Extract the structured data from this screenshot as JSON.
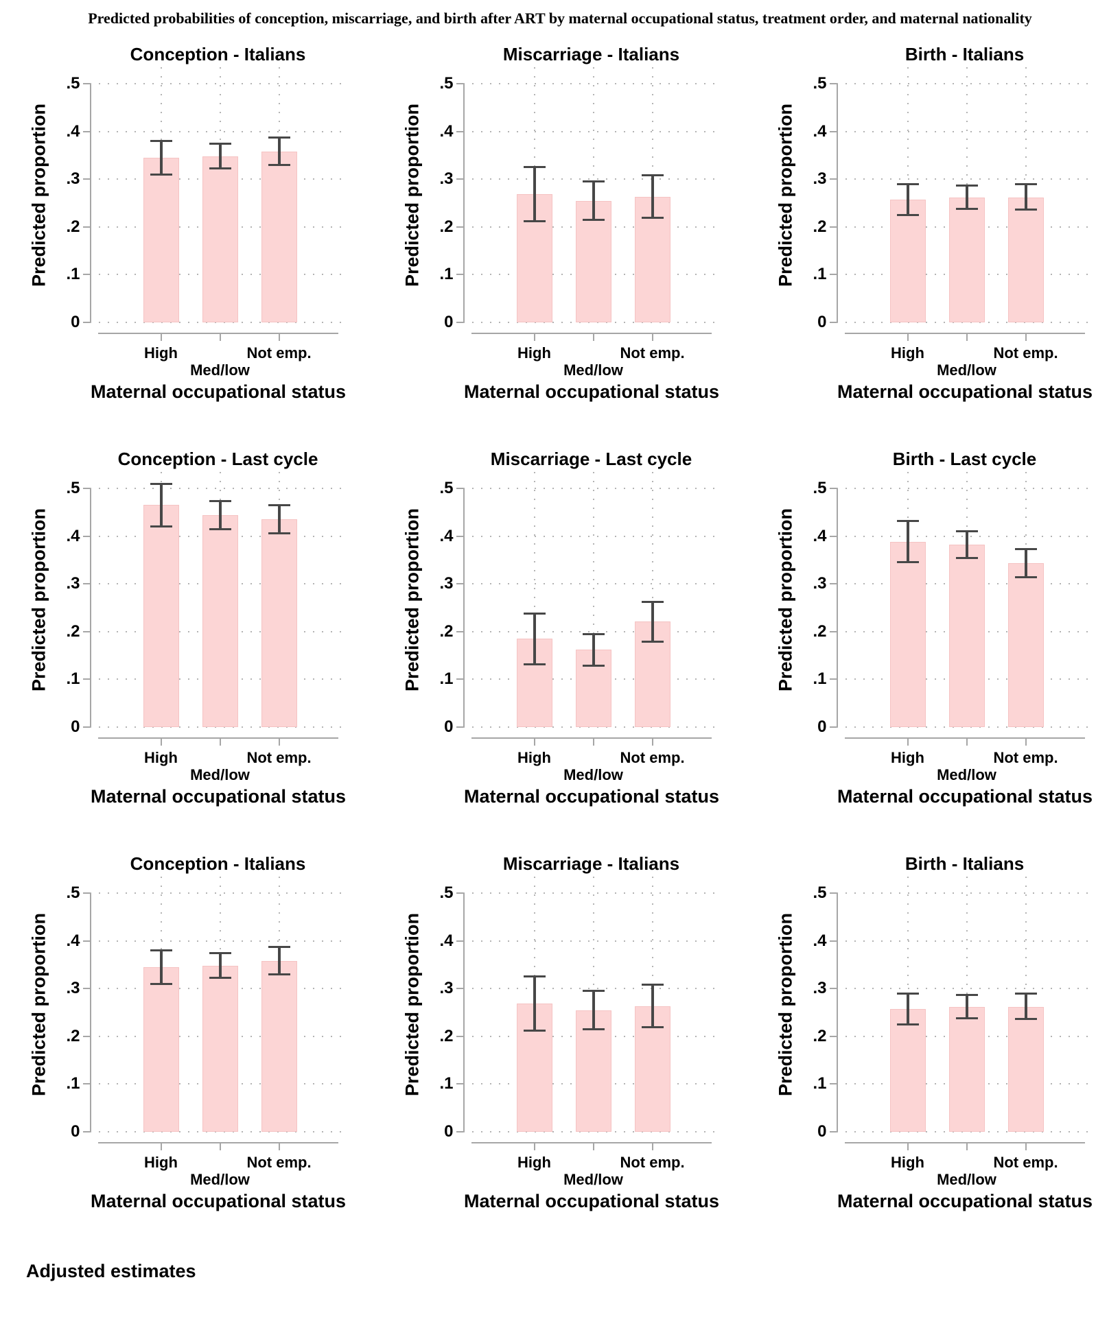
{
  "page": {
    "title": "Predicted probabilities of conception, miscarriage, and birth after ART by maternal occupational status, treatment order, and maternal nationality",
    "footer": "Adjusted estimates",
    "colors": {
      "bar_fill": "#FCD5D5",
      "bar_border": "#F5C3C3",
      "error_bar": "#474747",
      "axis_line": "#A6A6A6",
      "gridline": "#B3B3B3",
      "text": "#000000"
    }
  },
  "chart_data": [
    {
      "type": "bar",
      "title": "Conception - Italians",
      "categories": [
        "High",
        "Med/low",
        "Not emp."
      ],
      "values": [
        0.345,
        0.348,
        0.358
      ],
      "ci_low": [
        0.307,
        0.32,
        0.327
      ],
      "ci_high": [
        0.382,
        0.377,
        0.389
      ],
      "xlabel": "Maternal occupational status",
      "ylabel": "Predicted proportion",
      "ylim": [
        0,
        0.5
      ],
      "yticks": [
        {
          "v": 0,
          "label": "0"
        },
        {
          "v": 0.1,
          "label": ".1"
        },
        {
          "v": 0.2,
          "label": ".2"
        },
        {
          "v": 0.3,
          "label": ".3"
        },
        {
          "v": 0.4,
          "label": ".4"
        },
        {
          "v": 0.5,
          "label": ".5"
        }
      ],
      "grid": "dotted",
      "error_bars": true
    },
    {
      "type": "bar",
      "title": "Miscarriage - Italians",
      "categories": [
        "High",
        "Med/low",
        "Not emp."
      ],
      "values": [
        0.268,
        0.255,
        0.263
      ],
      "ci_low": [
        0.21,
        0.212,
        0.217
      ],
      "ci_high": [
        0.328,
        0.297,
        0.31
      ],
      "xlabel": "Maternal occupational status",
      "ylabel": "Predicted proportion",
      "ylim": [
        0,
        0.5
      ],
      "yticks": [
        {
          "v": 0,
          "label": "0"
        },
        {
          "v": 0.1,
          "label": ".1"
        },
        {
          "v": 0.2,
          "label": ".2"
        },
        {
          "v": 0.3,
          "label": ".3"
        },
        {
          "v": 0.4,
          "label": ".4"
        },
        {
          "v": 0.5,
          "label": ".5"
        }
      ],
      "grid": "dotted",
      "error_bars": true
    },
    {
      "type": "bar",
      "title": "Birth - Italians",
      "categories": [
        "High",
        "Med/low",
        "Not emp."
      ],
      "values": [
        0.257,
        0.262,
        0.262
      ],
      "ci_low": [
        0.223,
        0.236,
        0.234
      ],
      "ci_high": [
        0.291,
        0.289,
        0.291
      ],
      "xlabel": "Maternal occupational status",
      "ylabel": "Predicted proportion",
      "ylim": [
        0,
        0.5
      ],
      "yticks": [
        {
          "v": 0,
          "label": "0"
        },
        {
          "v": 0.1,
          "label": ".1"
        },
        {
          "v": 0.2,
          "label": ".2"
        },
        {
          "v": 0.3,
          "label": ".3"
        },
        {
          "v": 0.4,
          "label": ".4"
        },
        {
          "v": 0.5,
          "label": ".5"
        }
      ],
      "grid": "dotted",
      "error_bars": true
    },
    {
      "type": "bar",
      "title": "Conception - Last cycle",
      "categories": [
        "High",
        "Med/low",
        "Not emp."
      ],
      "values": [
        0.465,
        0.444,
        0.435
      ],
      "ci_low": [
        0.418,
        0.413,
        0.404
      ],
      "ci_high": [
        0.512,
        0.476,
        0.467
      ],
      "xlabel": "Maternal occupational status",
      "ylabel": "Predicted proportion",
      "ylim": [
        0,
        0.5
      ],
      "yticks": [
        {
          "v": 0,
          "label": "0"
        },
        {
          "v": 0.1,
          "label": ".1"
        },
        {
          "v": 0.2,
          "label": ".2"
        },
        {
          "v": 0.3,
          "label": ".3"
        },
        {
          "v": 0.4,
          "label": ".4"
        },
        {
          "v": 0.5,
          "label": ".5"
        }
      ],
      "grid": "dotted",
      "error_bars": true
    },
    {
      "type": "bar",
      "title": "Miscarriage - Last cycle",
      "categories": [
        "High",
        "Med/low",
        "Not emp."
      ],
      "values": [
        0.185,
        0.162,
        0.221
      ],
      "ci_low": [
        0.13,
        0.127,
        0.177
      ],
      "ci_high": [
        0.24,
        0.197,
        0.264
      ],
      "xlabel": "Maternal occupational status",
      "ylabel": "Predicted proportion",
      "ylim": [
        0,
        0.5
      ],
      "yticks": [
        {
          "v": 0,
          "label": "0"
        },
        {
          "v": 0.1,
          "label": ".1"
        },
        {
          "v": 0.2,
          "label": ".2"
        },
        {
          "v": 0.3,
          "label": ".3"
        },
        {
          "v": 0.4,
          "label": ".4"
        },
        {
          "v": 0.5,
          "label": ".5"
        }
      ],
      "grid": "dotted",
      "error_bars": true
    },
    {
      "type": "bar",
      "title": "Birth - Last cycle",
      "categories": [
        "High",
        "Med/low",
        "Not emp."
      ],
      "values": [
        0.388,
        0.382,
        0.344
      ],
      "ci_low": [
        0.343,
        0.352,
        0.312
      ],
      "ci_high": [
        0.434,
        0.412,
        0.375
      ],
      "xlabel": "Maternal occupational status",
      "ylabel": "Predicted proportion",
      "ylim": [
        0,
        0.5
      ],
      "yticks": [
        {
          "v": 0,
          "label": "0"
        },
        {
          "v": 0.1,
          "label": ".1"
        },
        {
          "v": 0.2,
          "label": ".2"
        },
        {
          "v": 0.3,
          "label": ".3"
        },
        {
          "v": 0.4,
          "label": ".4"
        },
        {
          "v": 0.5,
          "label": ".5"
        }
      ],
      "grid": "dotted",
      "error_bars": true
    },
    {
      "type": "bar",
      "title": "Conception - Italians",
      "categories": [
        "High",
        "Med/low",
        "Not emp."
      ],
      "values": [
        0.345,
        0.348,
        0.358
      ],
      "ci_low": [
        0.307,
        0.32,
        0.327
      ],
      "ci_high": [
        0.382,
        0.377,
        0.389
      ],
      "xlabel": "Maternal occupational status",
      "ylabel": "Predicted proportion",
      "ylim": [
        0,
        0.5
      ],
      "yticks": [
        {
          "v": 0,
          "label": "0"
        },
        {
          "v": 0.1,
          "label": ".1"
        },
        {
          "v": 0.2,
          "label": ".2"
        },
        {
          "v": 0.3,
          "label": ".3"
        },
        {
          "v": 0.4,
          "label": ".4"
        },
        {
          "v": 0.5,
          "label": ".5"
        }
      ],
      "grid": "dotted",
      "error_bars": true
    },
    {
      "type": "bar",
      "title": "Miscarriage - Italians",
      "categories": [
        "High",
        "Med/low",
        "Not emp."
      ],
      "values": [
        0.268,
        0.255,
        0.263
      ],
      "ci_low": [
        0.21,
        0.212,
        0.217
      ],
      "ci_high": [
        0.328,
        0.297,
        0.31
      ],
      "xlabel": "Maternal occupational status",
      "ylabel": "Predicted proportion",
      "ylim": [
        0,
        0.5
      ],
      "yticks": [
        {
          "v": 0,
          "label": "0"
        },
        {
          "v": 0.1,
          "label": ".1"
        },
        {
          "v": 0.2,
          "label": ".2"
        },
        {
          "v": 0.3,
          "label": ".3"
        },
        {
          "v": 0.4,
          "label": ".4"
        },
        {
          "v": 0.5,
          "label": ".5"
        }
      ],
      "grid": "dotted",
      "error_bars": true
    },
    {
      "type": "bar",
      "title": "Birth - Italians",
      "categories": [
        "High",
        "Med/low",
        "Not emp."
      ],
      "values": [
        0.257,
        0.262,
        0.262
      ],
      "ci_low": [
        0.223,
        0.236,
        0.234
      ],
      "ci_high": [
        0.291,
        0.289,
        0.291
      ],
      "xlabel": "Maternal occupational status",
      "ylabel": "Predicted proportion",
      "ylim": [
        0,
        0.5
      ],
      "yticks": [
        {
          "v": 0,
          "label": "0"
        },
        {
          "v": 0.1,
          "label": ".1"
        },
        {
          "v": 0.2,
          "label": ".2"
        },
        {
          "v": 0.3,
          "label": ".3"
        },
        {
          "v": 0.4,
          "label": ".4"
        },
        {
          "v": 0.5,
          "label": ".5"
        }
      ],
      "grid": "dotted",
      "error_bars": true
    }
  ]
}
